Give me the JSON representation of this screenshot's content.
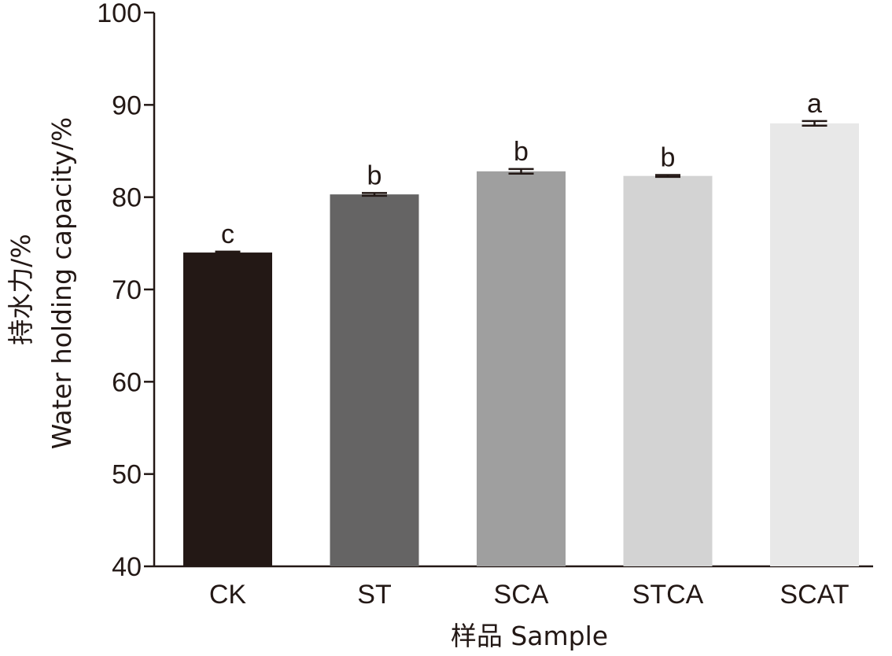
{
  "chart_data": {
    "type": "bar",
    "title": "",
    "categories": [
      "CK",
      "ST",
      "SCA",
      "STCA",
      "SCAT"
    ],
    "values": [
      74.0,
      80.3,
      82.8,
      82.3,
      88.0
    ],
    "errors": [
      0.1,
      0.15,
      0.25,
      0.1,
      0.25
    ],
    "significance": [
      "c",
      "b",
      "b",
      "b",
      "a"
    ],
    "colors": [
      "#231815",
      "#656464",
      "#9f9f9f",
      "#d3d3d3",
      "#e8e8e8"
    ],
    "xlabel": "样品 Sample",
    "ylabel_cn": "持水力/%",
    "ylabel_en": "Water holding capacity/%",
    "ylim": [
      40,
      100
    ],
    "yticks": [
      40,
      50,
      60,
      70,
      80,
      90,
      100
    ],
    "grid": false,
    "legend": "none"
  }
}
